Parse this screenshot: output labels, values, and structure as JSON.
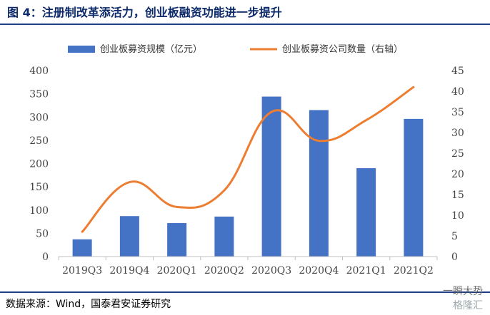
{
  "header": {
    "figure_title": "图 4：注册制改革添活力，创业板融资功能进一步提升"
  },
  "footer": {
    "source": "数据来源：Wind，国泰君安证券研究",
    "watermark": "一瞬大势",
    "watermark_logo": "格隆汇"
  },
  "chart_data": {
    "type": "bar",
    "categories": [
      "2019Q3",
      "2019Q4",
      "2020Q1",
      "2020Q2",
      "2020Q3",
      "2020Q4",
      "2021Q1",
      "2021Q2"
    ],
    "series": [
      {
        "name": "创业板募资规模（亿元）",
        "type": "bar",
        "axis": "left",
        "color": "#4472c4",
        "values": [
          37,
          87,
          72,
          86,
          344,
          315,
          190,
          296
        ]
      },
      {
        "name": "创业板募资公司数量（右轴）",
        "type": "line",
        "axis": "right",
        "color": "#ed7d31",
        "values": [
          6,
          18,
          12,
          16,
          35,
          28,
          33,
          41
        ]
      }
    ],
    "y_left": {
      "min": 0,
      "max": 400,
      "ticks": [
        0,
        50,
        100,
        150,
        200,
        250,
        300,
        350,
        400
      ]
    },
    "y_right": {
      "min": 0,
      "max": 45,
      "ticks": [
        0,
        5,
        10,
        15,
        20,
        25,
        30,
        35,
        40,
        45
      ]
    },
    "legend_position": "top",
    "grid": false
  }
}
